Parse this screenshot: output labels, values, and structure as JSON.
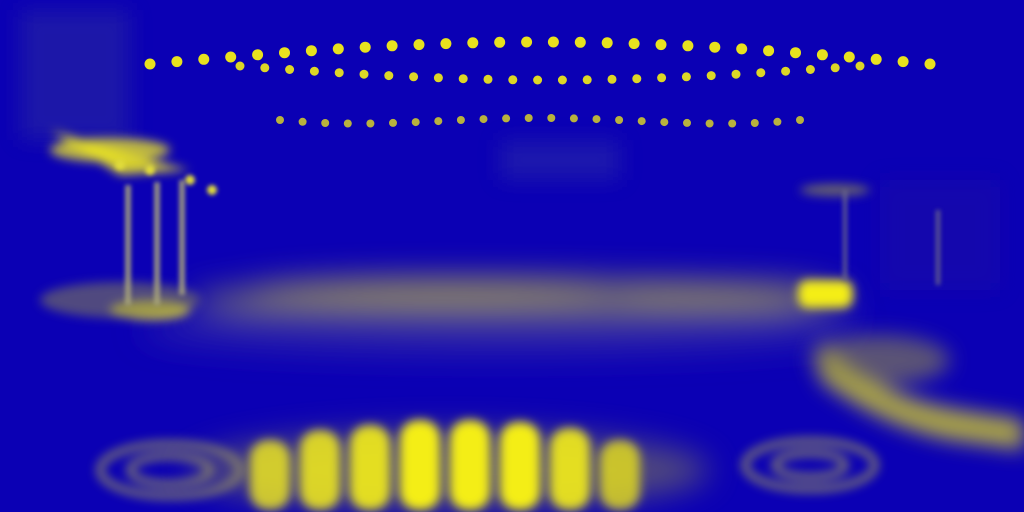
{
  "palette": {
    "background": "#0b00b4",
    "highlight": "#f4ee16",
    "mid": "#8f8c4a",
    "dim": "#3e33a6"
  },
  "scene": {
    "kind": "false-color night street scene",
    "elements": [
      "string-lights",
      "left-pavilion",
      "right-lamp",
      "street-glow",
      "crosswalk-glow",
      "right-curb-glow"
    ]
  }
}
